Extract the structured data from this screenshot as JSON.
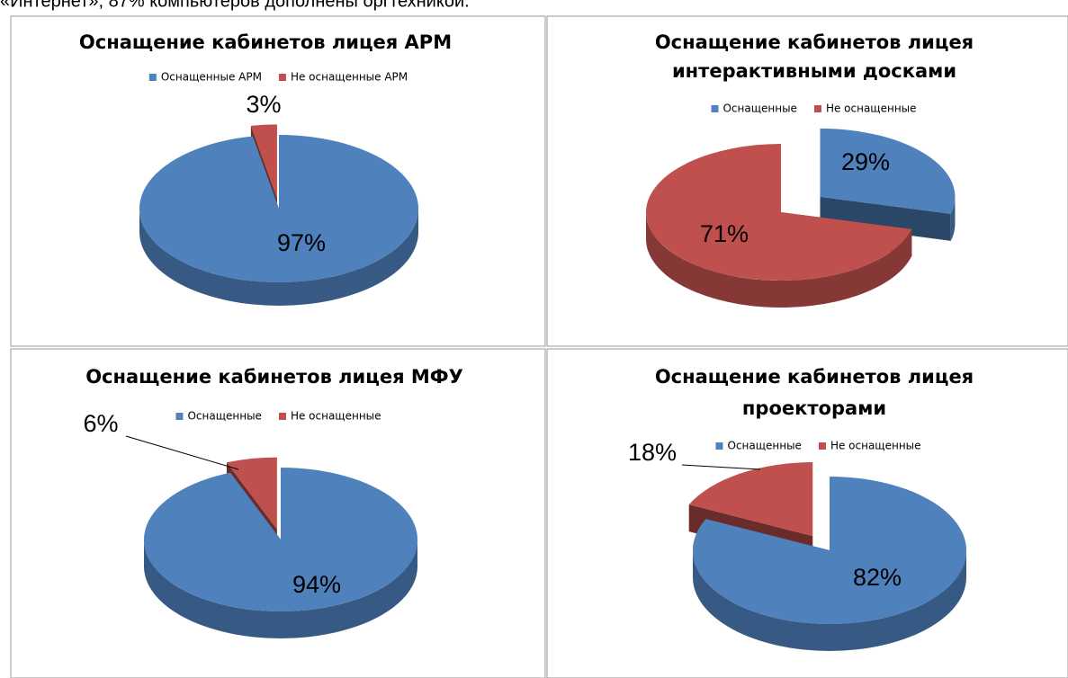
{
  "text": "«Интернет», 87% компьютеров дополнены оргтехникой.",
  "chart_data": [
    {
      "type": "pie",
      "title": "Оснащение кабинетов лицея АРМ",
      "categories": [
        "Оснащенные АРМ",
        "Не оснащенные АРМ"
      ],
      "values": [
        97,
        3
      ],
      "value_labels": [
        "97%",
        "3%"
      ],
      "colors": [
        "#4f81bd",
        "#c0504d"
      ],
      "legend": "top"
    },
    {
      "type": "pie",
      "title": [
        "Оснащение кабинетов лицея",
        "интерактивными досками"
      ],
      "categories": [
        "Оснащенные",
        "Не оснащенные"
      ],
      "values": [
        29,
        71
      ],
      "value_labels": [
        "29%",
        "71%"
      ],
      "colors": [
        "#4f81bd",
        "#c0504d"
      ],
      "legend": "top"
    },
    {
      "type": "pie",
      "title": "Оснащение кабинетов лицея МФУ",
      "categories": [
        "Оснащенные",
        "Не оснащенные"
      ],
      "values": [
        94,
        6
      ],
      "value_labels": [
        "94%",
        "6%"
      ],
      "colors": [
        "#4f81bd",
        "#c0504d"
      ],
      "legend": "top"
    },
    {
      "type": "pie",
      "title": [
        "Оснащение кабинетов лицея",
        "проекторами"
      ],
      "categories": [
        "Оснащенные",
        "Не оснащенные"
      ],
      "values": [
        82,
        18
      ],
      "value_labels": [
        "82%",
        "18%"
      ],
      "colors": [
        "#4f81bd",
        "#c0504d"
      ],
      "legend": "top"
    }
  ]
}
